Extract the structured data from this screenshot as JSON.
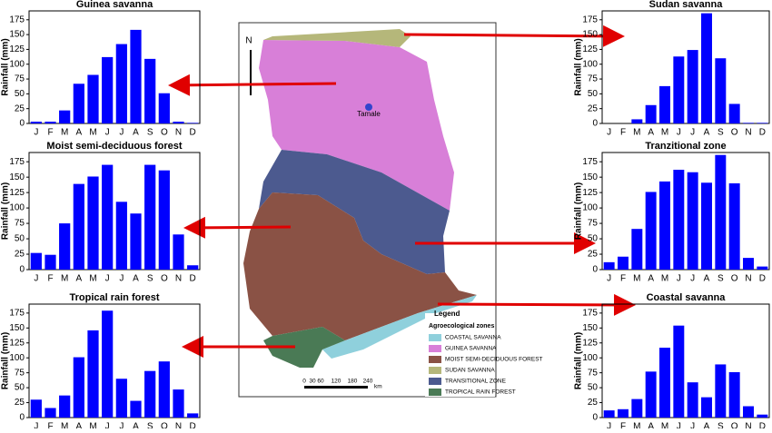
{
  "chart_data": [
    {
      "type": "bar",
      "title": "Guinea savanna",
      "ylabel": "Rainfall (mm)",
      "categories": [
        "J",
        "F",
        "M",
        "A",
        "M",
        "J",
        "J",
        "A",
        "S",
        "O",
        "N",
        "D"
      ],
      "values": [
        3,
        3,
        22,
        67,
        82,
        112,
        134,
        158,
        109,
        51,
        3,
        1
      ],
      "color": "#0000ff",
      "ylim": [
        0,
        190
      ],
      "yticks": [
        0,
        25,
        50,
        75,
        100,
        125,
        150,
        175
      ]
    },
    {
      "type": "bar",
      "title": "Moist semi-deciduous forest",
      "ylabel": "Rainfall (mm)",
      "categories": [
        "J",
        "F",
        "M",
        "A",
        "M",
        "J",
        "J",
        "A",
        "S",
        "O",
        "N",
        "D"
      ],
      "values": [
        27,
        24,
        75,
        139,
        151,
        170,
        110,
        91,
        170,
        161,
        57,
        7
      ],
      "color": "#0000ff",
      "ylim": [
        0,
        190
      ],
      "yticks": [
        0,
        25,
        50,
        75,
        100,
        125,
        150,
        175
      ]
    },
    {
      "type": "bar",
      "title": "Tropical rain forest",
      "ylabel": "Rainfall (mm)",
      "categories": [
        "J",
        "F",
        "M",
        "A",
        "M",
        "J",
        "J",
        "A",
        "S",
        "O",
        "N",
        "D"
      ],
      "values": [
        30,
        16,
        37,
        101,
        146,
        179,
        65,
        28,
        78,
        94,
        47,
        7
      ],
      "color": "#0000ff",
      "ylim": [
        0,
        190
      ],
      "yticks": [
        0,
        25,
        50,
        75,
        100,
        125,
        150,
        175
      ]
    },
    {
      "type": "bar",
      "title": "Sudan savanna",
      "ylabel": "Rainfall (mm)",
      "categories": [
        "J",
        "F",
        "M",
        "A",
        "M",
        "J",
        "J",
        "A",
        "S",
        "O",
        "N",
        "D"
      ],
      "values": [
        0,
        0,
        7,
        31,
        63,
        113,
        124,
        186,
        110,
        33,
        1,
        1
      ],
      "color": "#0000ff",
      "ylim": [
        0,
        190
      ],
      "yticks": [
        0,
        25,
        50,
        75,
        100,
        125,
        150,
        175
      ]
    },
    {
      "type": "bar",
      "title": "Tranzitional zone",
      "ylabel": "Rainfall (mm)",
      "categories": [
        "J",
        "F",
        "M",
        "A",
        "M",
        "J",
        "J",
        "A",
        "S",
        "O",
        "N",
        "D"
      ],
      "values": [
        12,
        21,
        66,
        126,
        143,
        162,
        158,
        141,
        186,
        140,
        19,
        5
      ],
      "color": "#0000ff",
      "ylim": [
        0,
        190
      ],
      "yticks": [
        0,
        25,
        50,
        75,
        100,
        125,
        150,
        175
      ]
    },
    {
      "type": "bar",
      "title": "Coastal savanna",
      "ylabel": "Rainfall (mm)",
      "categories": [
        "J",
        "F",
        "M",
        "A",
        "M",
        "J",
        "J",
        "A",
        "S",
        "O",
        "N",
        "D"
      ],
      "values": [
        12,
        14,
        31,
        77,
        117,
        154,
        59,
        34,
        89,
        76,
        19,
        5
      ],
      "color": "#0000ff",
      "ylim": [
        0,
        190
      ],
      "yticks": [
        0,
        25,
        50,
        75,
        100,
        125,
        150,
        175
      ]
    }
  ],
  "map": {
    "north": "N",
    "city": "Tamale",
    "legend_title": "Legend",
    "legend_subtitle": "Agroecological zones",
    "zones": [
      {
        "name": "COASTAL SAVANNA",
        "color": "#8fd0dc"
      },
      {
        "name": "GUINEA SAVANNA",
        "color": "#d87fd8"
      },
      {
        "name": "MOIST SEMI-DECIDUOUS FOREST",
        "color": "#8a5245"
      },
      {
        "name": "SUDAN SAVANNA",
        "color": "#b5b77a"
      },
      {
        "name": "TRANSITIONAL ZONE",
        "color": "#4c5a8f"
      },
      {
        "name": "TROPICAL RAIN FOREST",
        "color": "#4a7a55"
      }
    ],
    "scale_labels": [
      "0",
      "30",
      "60",
      "120",
      "180",
      "240"
    ],
    "scale_unit": "km"
  }
}
